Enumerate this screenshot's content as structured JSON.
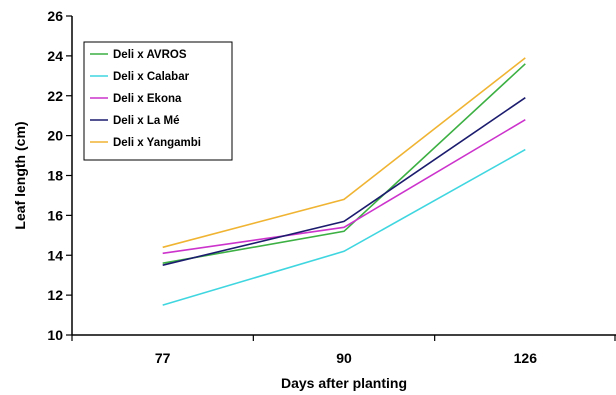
{
  "chart_data": {
    "type": "line",
    "xlabel": "Days after planting",
    "ylabel": "Leaf length (cm)",
    "categories": [
      "77",
      "90",
      "126"
    ],
    "ylim": [
      10,
      26
    ],
    "yticks": [
      10,
      12,
      14,
      16,
      18,
      20,
      22,
      24,
      26
    ],
    "grid": false,
    "legend_position": "top-left",
    "series": [
      {
        "name": "Deli x AVROS",
        "color": "#3cb043",
        "values": [
          13.6,
          15.2,
          23.6
        ]
      },
      {
        "name": "Deli x Calabar",
        "color": "#40d6e0",
        "values": [
          11.5,
          14.2,
          19.3
        ]
      },
      {
        "name": "Deli x Ekona",
        "color": "#cc33cc",
        "values": [
          14.1,
          15.4,
          20.8
        ]
      },
      {
        "name": "Deli x La Mé",
        "color": "#1c1c6e",
        "values": [
          13.5,
          15.7,
          21.9
        ]
      },
      {
        "name": "Deli x Yangambi",
        "color": "#f0b433",
        "values": [
          14.4,
          16.8,
          23.9
        ]
      }
    ]
  }
}
